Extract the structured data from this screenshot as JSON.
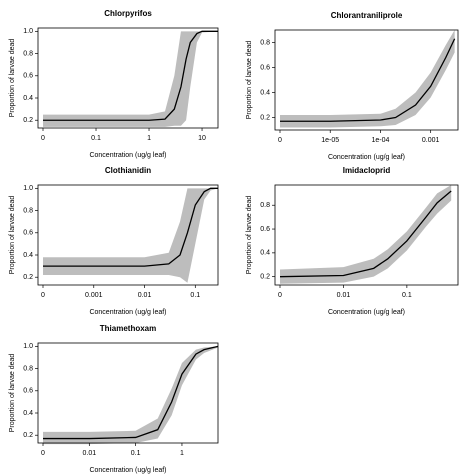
{
  "chart_data": [
    {
      "type": "line",
      "title": "Chlorpyrifos",
      "xlabel": "Concentration (ug/g leaf)",
      "ylabel": "Proportion of larvae dead",
      "xscale": "log",
      "color": "#000000",
      "band_color": "#bdbdbd",
      "x": [
        0,
        0.1,
        1,
        2,
        3,
        4,
        5,
        6,
        8,
        10,
        20
      ],
      "values": [
        0.2,
        0.2,
        0.2,
        0.21,
        0.3,
        0.5,
        0.75,
        0.9,
        0.98,
        1.0,
        1.0
      ],
      "lower": [
        0.14,
        0.14,
        0.14,
        0.14,
        0.15,
        0.15,
        0.2,
        0.5,
        0.9,
        0.99,
        1.0
      ],
      "upper": [
        0.25,
        0.25,
        0.25,
        0.28,
        0.6,
        1.0,
        1.0,
        1.0,
        1.0,
        1.0,
        1.0
      ],
      "xlim": [
        0,
        20
      ],
      "xticks": [
        0,
        0.1,
        1,
        10
      ],
      "ylim": [
        0.13,
        1.03
      ],
      "yticks": [
        0.2,
        0.4,
        0.6,
        0.8,
        {
          "value": 1.0,
          "label": "1.0"
        }
      ]
    },
    {
      "type": "line",
      "title": "Chlorantraniliprole",
      "xlabel": "Concentration (ug/g leaf)",
      "ylabel": "Proportion of larvae dead",
      "xscale": "log",
      "color": "#000000",
      "band_color": "#bdbdbd",
      "x": [
        0,
        1e-05,
        0.0001,
        0.0002,
        0.0005,
        0.001,
        0.002,
        0.003
      ],
      "values": [
        0.17,
        0.17,
        0.18,
        0.2,
        0.3,
        0.45,
        0.68,
        0.83
      ],
      "lower": [
        0.12,
        0.12,
        0.13,
        0.14,
        0.22,
        0.36,
        0.58,
        0.72
      ],
      "upper": [
        0.22,
        0.22,
        0.23,
        0.27,
        0.4,
        0.56,
        0.78,
        0.9
      ],
      "xlim": [
        0,
        0.0035
      ],
      "xticks": [
        0,
        {
          "value": 1e-05,
          "label": "1e-05"
        },
        {
          "value": 0.0001,
          "label": "1e-04"
        },
        0.001
      ],
      "ylim": [
        0.1,
        0.9
      ],
      "yticks": [
        0.2,
        0.4,
        0.6,
        0.8
      ]
    },
    {
      "type": "line",
      "title": "Clothianidin",
      "xlabel": "Concentration (ug/g leaf)",
      "ylabel": "Proportion of larvae dead",
      "xscale": "log",
      "color": "#000000",
      "band_color": "#bdbdbd",
      "x": [
        0,
        0.001,
        0.01,
        0.03,
        0.05,
        0.07,
        0.1,
        0.15,
        0.2,
        0.28
      ],
      "values": [
        0.3,
        0.3,
        0.3,
        0.32,
        0.4,
        0.6,
        0.85,
        0.97,
        1.0,
        1.0
      ],
      "lower": [
        0.22,
        0.22,
        0.22,
        0.22,
        0.2,
        0.15,
        0.5,
        0.9,
        0.98,
        1.0
      ],
      "upper": [
        0.38,
        0.38,
        0.38,
        0.42,
        0.7,
        1.0,
        1.0,
        1.0,
        1.0,
        1.0
      ],
      "xlim": [
        0,
        0.28
      ],
      "xticks": [
        0,
        0.001,
        0.01,
        0.1
      ],
      "ylim": [
        0.13,
        1.03
      ],
      "yticks": [
        0.2,
        0.4,
        0.6,
        0.8,
        {
          "value": 1.0,
          "label": "1.0"
        }
      ]
    },
    {
      "type": "line",
      "title": "Imidacloprid",
      "xlabel": "Concentration (ug/g leaf)",
      "ylabel": "Proportion of larvae dead",
      "xscale": "log",
      "color": "#000000",
      "band_color": "#bdbdbd",
      "x": [
        0,
        0.01,
        0.03,
        0.05,
        0.1,
        0.2,
        0.3,
        0.5
      ],
      "values": [
        0.2,
        0.21,
        0.27,
        0.35,
        0.5,
        0.7,
        0.82,
        0.92
      ],
      "lower": [
        0.14,
        0.15,
        0.2,
        0.27,
        0.42,
        0.62,
        0.73,
        0.84
      ],
      "upper": [
        0.26,
        0.28,
        0.35,
        0.43,
        0.58,
        0.78,
        0.9,
        0.97
      ],
      "xlim": [
        0,
        0.64
      ],
      "xticks": [
        0,
        0.01,
        0.1
      ],
      "ylim": [
        0.13,
        0.97
      ],
      "yticks": [
        0.2,
        0.4,
        0.6,
        0.8
      ]
    },
    {
      "type": "line",
      "title": "Thiamethoxam",
      "xlabel": "Concentration (ug/g leaf)",
      "ylabel": "Proportion of larvae dead",
      "xscale": "log",
      "color": "#000000",
      "band_color": "#bdbdbd",
      "x": [
        0,
        0.01,
        0.1,
        0.3,
        0.6,
        1,
        2,
        3,
        6
      ],
      "values": [
        0.17,
        0.17,
        0.18,
        0.25,
        0.5,
        0.75,
        0.93,
        0.97,
        1.0
      ],
      "lower": [
        0.12,
        0.12,
        0.13,
        0.17,
        0.38,
        0.65,
        0.88,
        0.94,
        0.99
      ],
      "upper": [
        0.23,
        0.23,
        0.24,
        0.35,
        0.62,
        0.85,
        0.97,
        0.99,
        1.0
      ],
      "xlim": [
        0,
        6
      ],
      "xticks": [
        0,
        0.01,
        0.1,
        1
      ],
      "ylim": [
        0.13,
        1.03
      ],
      "yticks": [
        0.2,
        0.4,
        0.6,
        0.8,
        {
          "value": 1.0,
          "label": "1.0"
        }
      ]
    }
  ]
}
